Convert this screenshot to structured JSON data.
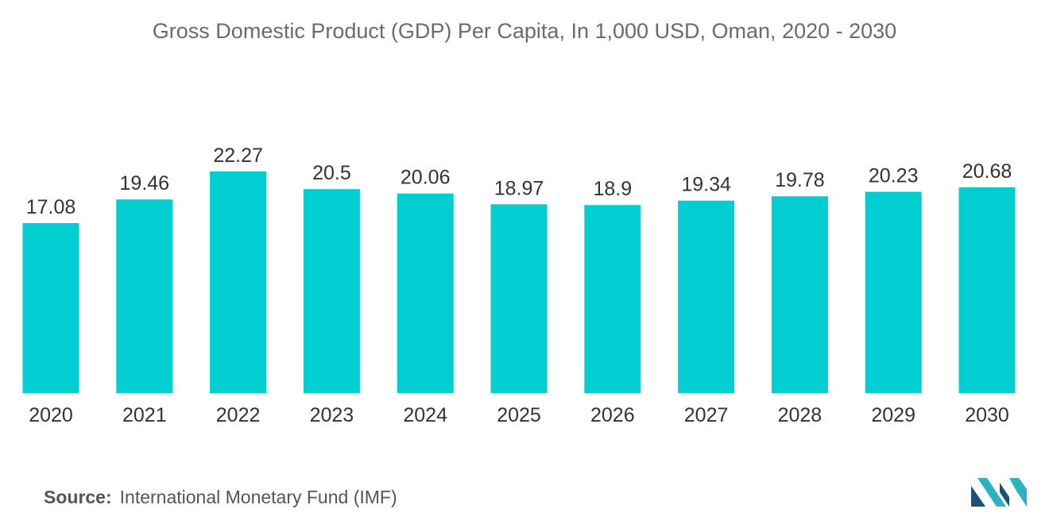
{
  "chart_data": {
    "type": "bar",
    "title": "Gross Domestic Product (GDP) Per Capita, In 1,000 USD, Oman, 2020 - 2030",
    "categories": [
      "2020",
      "2021",
      "2022",
      "2023",
      "2024",
      "2025",
      "2026",
      "2027",
      "2028",
      "2029",
      "2030"
    ],
    "values": [
      17.08,
      19.46,
      22.27,
      20.5,
      20.06,
      18.97,
      18.9,
      19.34,
      19.78,
      20.23,
      20.68
    ],
    "value_labels": [
      "17.08",
      "19.46",
      "22.27",
      "20.5",
      "20.06",
      "18.97",
      "18.9",
      "19.34",
      "19.78",
      "20.23",
      "20.68"
    ],
    "xlabel": "",
    "ylabel": "",
    "ylim": [
      0,
      22.27
    ],
    "grid": false,
    "bar_color": "#00CED1"
  },
  "source": {
    "label": "Source:",
    "text": "International Monetary Fund (IMF)"
  },
  "logo": {
    "icon": "mordor-intelligence-logo-icon",
    "colors": [
      "#1F4E79",
      "#2BB3C0"
    ]
  }
}
